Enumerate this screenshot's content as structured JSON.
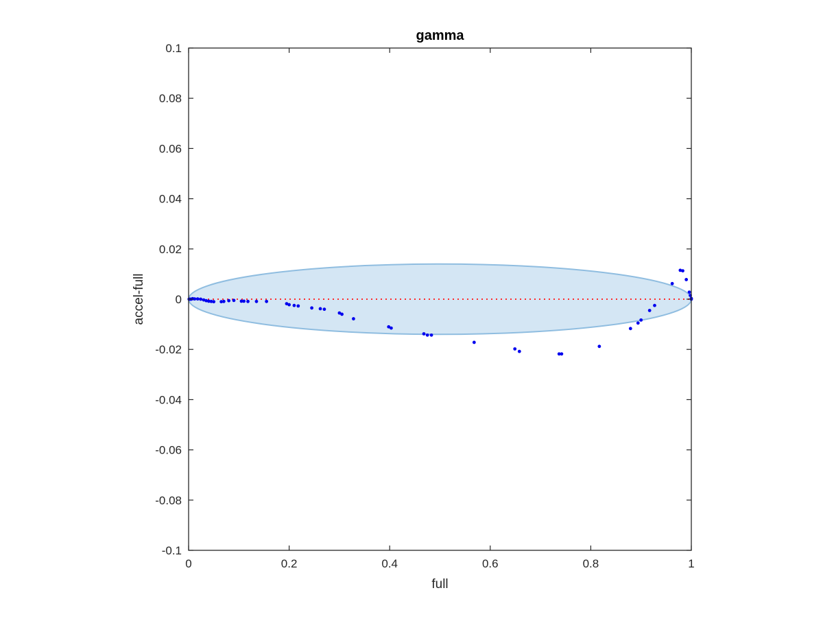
{
  "chart_data": {
    "type": "scatter",
    "title": "gamma",
    "xlabel": "full",
    "ylabel": "accel-full",
    "xlim": [
      0,
      1
    ],
    "ylim": [
      -0.1,
      0.1
    ],
    "x_ticks": [
      0,
      0.2,
      0.4,
      0.6,
      0.8,
      1
    ],
    "x_tick_labels": [
      "0",
      "0.2",
      "0.4",
      "0.6",
      "0.8",
      "1"
    ],
    "y_ticks": [
      -0.1,
      -0.08,
      -0.06,
      -0.04,
      -0.02,
      0,
      0.02,
      0.04,
      0.06,
      0.08,
      0.1
    ],
    "y_tick_labels": [
      "-0.1",
      "-0.08",
      "-0.06",
      "-0.04",
      "-0.02",
      "0",
      "0.02",
      "0.04",
      "0.06",
      "0.08",
      "0.1"
    ],
    "grid": false,
    "box": true,
    "ellipse": {
      "center": [
        0.5,
        0.0
      ],
      "x_radius": 0.5,
      "y_radius": 0.014,
      "fill_color": "#d4e6f4",
      "edge_color": "#8fbde0"
    },
    "reference_line": {
      "y": 0,
      "color": "#ff2a2a",
      "style": "dotted"
    },
    "series": [
      {
        "color": "#0000ee",
        "points": [
          [
            0.001,
            0.0
          ],
          [
            0.003,
            0.0
          ],
          [
            0.005,
            0.0
          ],
          [
            0.008,
            0.0002
          ],
          [
            0.012,
            0.0001
          ],
          [
            0.018,
            0.0001
          ],
          [
            0.024,
            0.0
          ],
          [
            0.03,
            -0.0003
          ],
          [
            0.035,
            -0.0006
          ],
          [
            0.04,
            -0.0008
          ],
          [
            0.045,
            -0.0009
          ],
          [
            0.05,
            -0.001
          ],
          [
            0.065,
            -0.001
          ],
          [
            0.07,
            -0.0009
          ],
          [
            0.08,
            -0.0006
          ],
          [
            0.09,
            -0.0005
          ],
          [
            0.105,
            -0.0008
          ],
          [
            0.11,
            -0.0008
          ],
          [
            0.118,
            -0.0009
          ],
          [
            0.135,
            -0.0009
          ],
          [
            0.155,
            -0.0009
          ],
          [
            0.195,
            -0.0018
          ],
          [
            0.2,
            -0.0022
          ],
          [
            0.21,
            -0.0025
          ],
          [
            0.218,
            -0.0027
          ],
          [
            0.245,
            -0.0035
          ],
          [
            0.262,
            -0.0038
          ],
          [
            0.27,
            -0.004
          ],
          [
            0.3,
            -0.0055
          ],
          [
            0.305,
            -0.006
          ],
          [
            0.328,
            -0.0078
          ],
          [
            0.398,
            -0.011
          ],
          [
            0.403,
            -0.0115
          ],
          [
            0.468,
            -0.0138
          ],
          [
            0.475,
            -0.0143
          ],
          [
            0.483,
            -0.0143
          ],
          [
            0.568,
            -0.0172
          ],
          [
            0.649,
            -0.0198
          ],
          [
            0.658,
            -0.0208
          ],
          [
            0.737,
            -0.0218
          ],
          [
            0.742,
            -0.0218
          ],
          [
            0.817,
            -0.0188
          ],
          [
            0.879,
            -0.0117
          ],
          [
            0.894,
            -0.0095
          ],
          [
            0.9,
            -0.0083
          ],
          [
            0.917,
            -0.0045
          ],
          [
            0.927,
            -0.0025
          ],
          [
            0.962,
            0.0062
          ],
          [
            0.978,
            0.0115
          ],
          [
            0.983,
            0.0113
          ],
          [
            0.99,
            0.0078
          ],
          [
            0.996,
            0.0028
          ],
          [
            0.998,
            0.0015
          ],
          [
            1.0,
            0.0003
          ],
          [
            1.0,
            0.0
          ]
        ]
      }
    ]
  }
}
